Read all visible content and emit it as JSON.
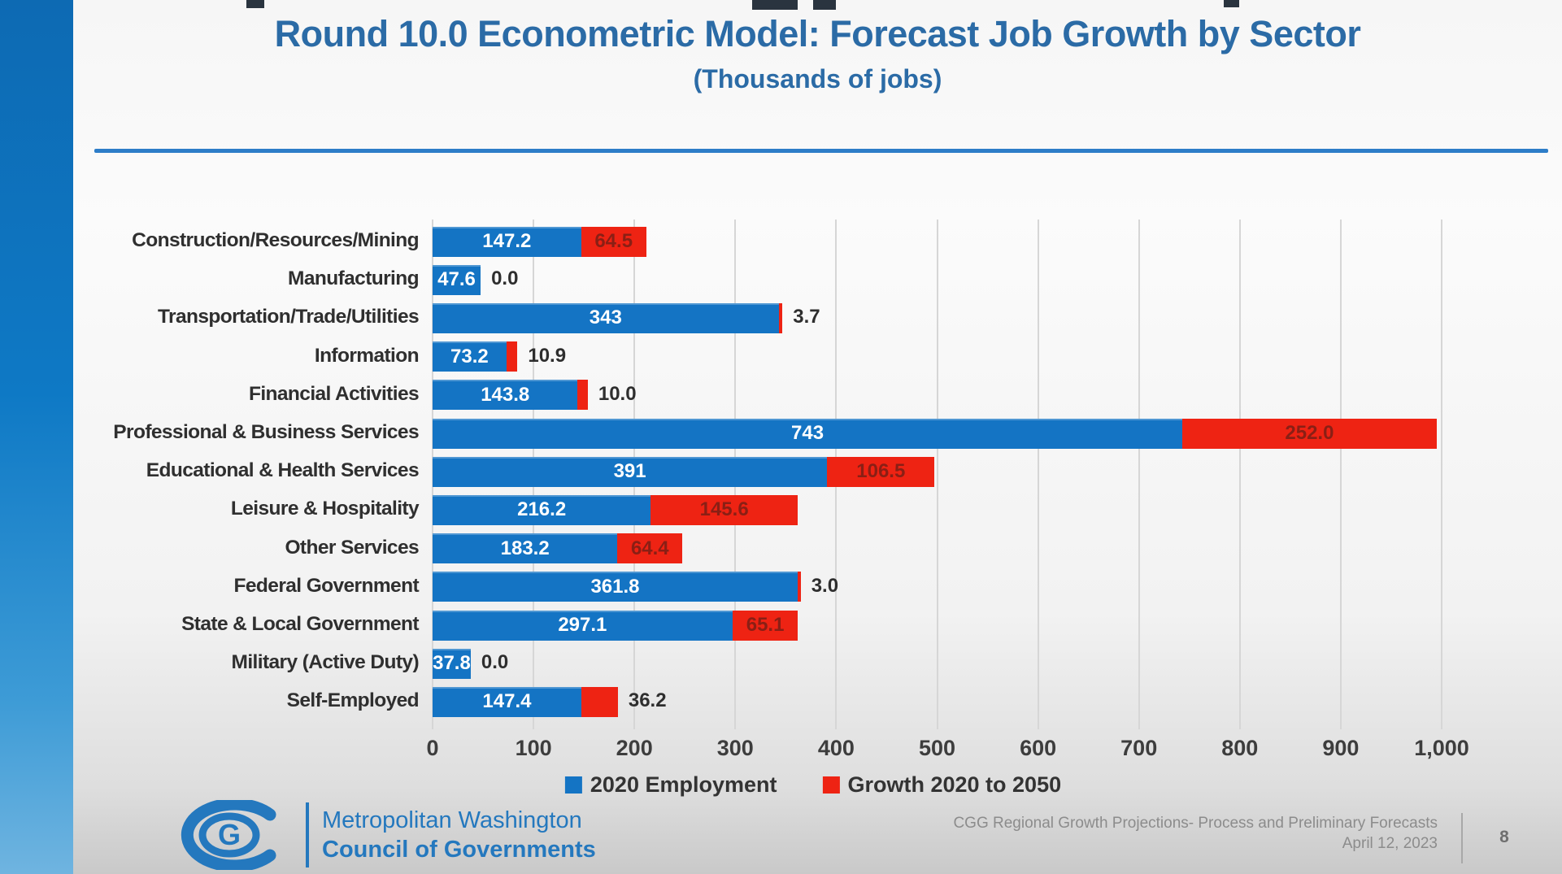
{
  "slide": {
    "title": "Round 10.0 Econometric Model: Forecast Job Growth by Sector",
    "subtitle": "(Thousands of jobs)"
  },
  "chart_data": {
    "type": "bar",
    "orientation": "horizontal",
    "stacked": true,
    "title": "Round 10.0 Econometric Model: Forecast Job Growth by Sector",
    "subtitle": "(Thousands of jobs)",
    "categories": [
      "Construction/Resources/Mining",
      "Manufacturing",
      "Transportation/Trade/Utilities",
      "Information",
      "Financial Activities",
      "Professional & Business Services",
      "Educational & Health Services",
      "Leisure & Hospitality",
      "Other Services",
      "Federal Government",
      "State & Local Government",
      "Military (Active Duty)",
      "Self-Employed"
    ],
    "series": [
      {
        "name": "2020 Employment",
        "color": "#1474c4",
        "values": [
          147.2,
          47.6,
          343,
          73.2,
          143.8,
          743,
          391,
          216.2,
          183.2,
          361.8,
          297.1,
          37.8,
          147.4
        ],
        "labels": [
          "147.2",
          "47.6",
          "343",
          "73.2",
          "143.8",
          "743",
          "391",
          "216.2",
          "183.2",
          "361.8",
          "297.1",
          "37.8",
          "147.4"
        ]
      },
      {
        "name": "Growth 2020 to 2050",
        "color": "#ee2313",
        "values": [
          64.5,
          0.0,
          3.7,
          10.9,
          10.0,
          252.0,
          106.5,
          145.6,
          64.4,
          3.0,
          65.1,
          0.0,
          36.2
        ],
        "labels": [
          "64.5",
          "0.0",
          "3.7",
          "10.9",
          "10.0",
          "252.0",
          "106.5",
          "145.6",
          "64.4",
          "3.0",
          "65.1",
          "0.0",
          "36.2"
        ],
        "label_inside": [
          true,
          false,
          false,
          false,
          false,
          true,
          true,
          true,
          true,
          false,
          true,
          false,
          false
        ]
      }
    ],
    "xlim": [
      0,
      1000
    ],
    "x_ticks": [
      "0",
      "100",
      "200",
      "300",
      "400",
      "500",
      "600",
      "700",
      "800",
      "900",
      "1,000"
    ],
    "grid": true,
    "legend_position": "bottom"
  },
  "legend": {
    "items": [
      {
        "label": "2020 Employment",
        "color": "#1474c4"
      },
      {
        "label": "Growth 2020 to 2050",
        "color": "#ee2313"
      }
    ]
  },
  "footer": {
    "org_line1": "Metropolitan Washington",
    "org_line2": "Council of Governments",
    "credit_line1": "CGG Regional Growth Projections- Process and Preliminary Forecasts",
    "credit_line2": "April 12, 2023",
    "page_number": "8"
  },
  "colors": {
    "title_blue": "#2b6ba6",
    "divider_blue": "#2d7dc8",
    "bar_blue": "#1474c4",
    "bar_red": "#ee2313",
    "logo_blue": "#2478be"
  }
}
